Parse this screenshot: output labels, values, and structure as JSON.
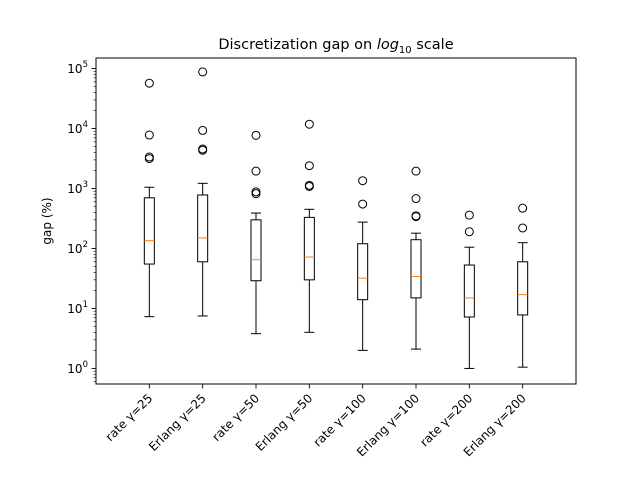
{
  "chart_data": {
    "type": "box",
    "title": {
      "prefix": "Discretization gap on ",
      "math_base": "log",
      "math_sub": "10",
      "suffix": " scale"
    },
    "ylabel": "gap (%)",
    "xlabel": "",
    "yscale": "log",
    "ylim": [
      0.55,
      150000
    ],
    "grid": false,
    "y_ticks": [
      {
        "value": 1,
        "base": "10",
        "exp": "0"
      },
      {
        "value": 10,
        "base": "10",
        "exp": "1"
      },
      {
        "value": 100,
        "base": "10",
        "exp": "2"
      },
      {
        "value": 1000,
        "base": "10",
        "exp": "3"
      },
      {
        "value": 10000,
        "base": "10",
        "exp": "4"
      },
      {
        "value": 100000,
        "base": "10",
        "exp": "5"
      }
    ],
    "categories": [
      "rate γ=25",
      "Erlang γ=25",
      "rate γ=50",
      "Erlang γ=50",
      "rate γ=100",
      "Erlang γ=100",
      "rate γ=200",
      "Erlang γ=200"
    ],
    "boxes": [
      {
        "whislo": 7.3,
        "q1": 55,
        "med": 135,
        "q3": 700,
        "whishi": 1050,
        "fliers": [
          3150,
          3350,
          7800,
          57000
        ]
      },
      {
        "whislo": 7.5,
        "q1": 60,
        "med": 150,
        "q3": 780,
        "whishi": 1220,
        "fliers": [
          4350,
          4550,
          9300,
          88000
        ]
      },
      {
        "whislo": 3.8,
        "q1": 29,
        "med": 65,
        "q3": 300,
        "whishi": 390,
        "fliers": [
          820,
          880,
          1950,
          7700
        ]
      },
      {
        "whislo": 4.0,
        "q1": 30,
        "med": 72,
        "q3": 330,
        "whishi": 450,
        "fliers": [
          1080,
          1130,
          2400,
          11800
        ]
      },
      {
        "whislo": 2.0,
        "q1": 14,
        "med": 32,
        "q3": 120,
        "whishi": 275,
        "fliers": [
          550,
          1350
        ]
      },
      {
        "whislo": 2.1,
        "q1": 15,
        "med": 34,
        "q3": 140,
        "whishi": 180,
        "fliers": [
          340,
          350,
          680,
          1950
        ]
      },
      {
        "whislo": 1.0,
        "q1": 7.2,
        "med": 15,
        "q3": 53,
        "whishi": 105,
        "fliers": [
          190,
          360
        ]
      },
      {
        "whislo": 1.05,
        "q1": 7.8,
        "med": 17,
        "q3": 60,
        "whishi": 125,
        "fliers": [
          220,
          470
        ]
      }
    ],
    "colors": {
      "box": "#000000",
      "median": "#ff7f0e",
      "flier": "#000000",
      "background": "#ffffff"
    }
  }
}
